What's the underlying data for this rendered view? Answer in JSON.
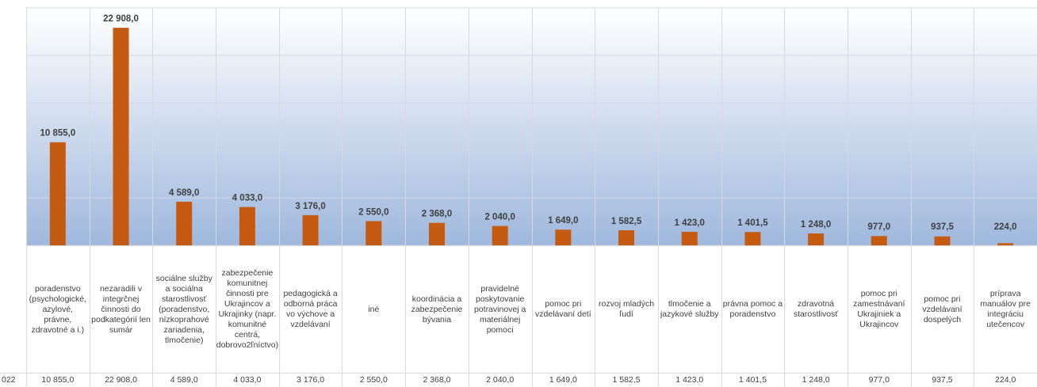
{
  "chart_data": {
    "type": "bar",
    "categories": [
      "poradenstvo (psychologické, azylové, právne, zdravotné a i.)",
      "nezaradili v integrčnej činnosti do podkategórií len sumár",
      "sociálne služby a sociálna starostlivosť (poradenstvo, nízkoprahové zariadenia, tlmočenie)",
      "zabezpečenie komunitnej činnosti pre Ukrajincov a Ukrajinky (napr. komunitné centrá, dobrovo2ľníctvo)",
      "pedagogická a odborná práca vo výchove a vzdelávaní",
      "iné",
      "koordinácia a zabezpečenie bývania",
      "pravidelné poskytovanie potravinovej a materiálnej pomoci",
      "pomoc pri vzdelávaní detí",
      "rozvoj mladých ľudí",
      "tlmočenie a jazykové služby",
      "právna pomoc a poradenstvo",
      "zdravotná starostlivosť",
      "pomoc pri zamestnávaní Ukrajiniek a Ukrajincov",
      "pomoc pri vzdelávaní dospelých",
      "príprava manuálov pre integráciu utečencov"
    ],
    "values": [
      10855,
      22908,
      4589,
      4033,
      3176,
      2550,
      2368,
      2040,
      1649,
      1582.5,
      1423,
      1401.5,
      1248,
      977,
      937.5,
      224
    ],
    "value_labels": [
      "10 855,0",
      "22 908,0",
      "4 589,0",
      "4 033,0",
      "3 176,0",
      "2 550,0",
      "2 368,0",
      "2 040,0",
      "1 649,0",
      "1 582,5",
      "1 423,0",
      "1 401,5",
      "1 248,0",
      "977,0",
      "937,5",
      "224,0"
    ],
    "row_header": "022",
    "ylim": [
      0,
      25000
    ],
    "grid": true,
    "bar_color": "#c55a11",
    "plot_gradient_top": "#ffffff",
    "plot_gradient_bottom": "#9fb8dd",
    "gridline_color": "#d0d8e8"
  }
}
